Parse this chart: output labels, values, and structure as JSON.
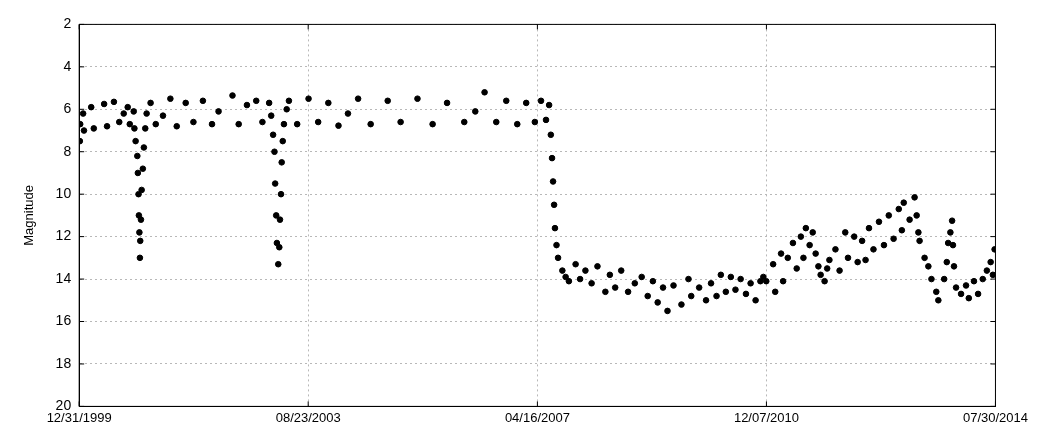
{
  "chart_data": {
    "type": "scatter",
    "ylabel": "Magnitude",
    "color": "#000000",
    "marker": "circle",
    "grid": true,
    "x": [
      "2000-01-04",
      "2000-01-06",
      "2000-01-23",
      "2000-01-28",
      "2000-03-10",
      "2000-03-25",
      "2000-05-24",
      "2000-06-10",
      "2000-07-20",
      "2000-08-20",
      "2000-09-15",
      "2000-10-08",
      "2000-10-20",
      "2000-11-12",
      "2000-11-16",
      "2000-11-23",
      "2000-12-03",
      "2000-12-06",
      "2000-12-10",
      "2000-12-12",
      "2000-12-15",
      "2000-12-18",
      "2000-12-20",
      "2000-12-24",
      "2000-12-28",
      "2001-01-04",
      "2001-01-10",
      "2001-01-18",
      "2001-01-26",
      "2001-02-18",
      "2001-03-20",
      "2001-05-01",
      "2001-06-13",
      "2001-07-20",
      "2001-09-10",
      "2001-10-25",
      "2001-12-19",
      "2002-02-10",
      "2002-03-20",
      "2002-06-09",
      "2002-07-15",
      "2002-09-01",
      "2002-10-25",
      "2002-11-30",
      "2003-01-08",
      "2003-01-20",
      "2003-01-31",
      "2003-02-08",
      "2003-02-12",
      "2003-02-18",
      "2003-02-22",
      "2003-03-02",
      "2003-03-08",
      "2003-03-12",
      "2003-03-18",
      "2003-03-22",
      "2003-03-28",
      "2003-04-04",
      "2003-04-20",
      "2003-05-03",
      "2003-06-20",
      "2003-08-25",
      "2003-10-20",
      "2003-12-18",
      "2004-02-15",
      "2004-04-10",
      "2004-06-08",
      "2004-08-20",
      "2004-11-27",
      "2005-02-10",
      "2005-05-19",
      "2005-08-15",
      "2005-11-07",
      "2006-02-15",
      "2006-04-20",
      "2006-06-13",
      "2006-08-20",
      "2006-10-17",
      "2006-12-20",
      "2007-02-10",
      "2007-04-01",
      "2007-05-07",
      "2007-06-05",
      "2007-06-23",
      "2007-07-03",
      "2007-07-10",
      "2007-07-16",
      "2007-07-22",
      "2007-07-27",
      "2007-08-05",
      "2007-08-14",
      "2007-09-08",
      "2007-09-27",
      "2007-10-16",
      "2007-11-24",
      "2007-12-20",
      "2008-01-20",
      "2008-02-25",
      "2008-03-30",
      "2008-05-15",
      "2008-06-10",
      "2008-07-11",
      "2008-08-15",
      "2008-09-24",
      "2008-11-02",
      "2008-12-12",
      "2009-01-16",
      "2009-02-15",
      "2009-03-15",
      "2009-04-15",
      "2009-05-11",
      "2009-06-15",
      "2009-07-31",
      "2009-09-10",
      "2009-09-26",
      "2009-11-11",
      "2009-12-21",
      "2010-01-19",
      "2010-02-20",
      "2010-03-17",
      "2010-04-15",
      "2010-05-14",
      "2010-06-10",
      "2010-07-10",
      "2010-08-10",
      "2010-09-06",
      "2010-10-05",
      "2010-11-02",
      "2010-11-19",
      "2010-12-06",
      "2011-01-15",
      "2011-01-27",
      "2011-03-02",
      "2011-03-14",
      "2011-04-10",
      "2011-05-10",
      "2011-06-01",
      "2011-06-25",
      "2011-07-10",
      "2011-07-24",
      "2011-08-15",
      "2011-09-02",
      "2011-09-19",
      "2011-10-05",
      "2011-10-18",
      "2011-11-10",
      "2011-11-25",
      "2011-12-08",
      "2012-01-12",
      "2012-02-05",
      "2012-03-09",
      "2012-03-25",
      "2012-04-30",
      "2012-05-20",
      "2012-06-15",
      "2012-07-05",
      "2012-07-25",
      "2012-08-20",
      "2012-09-21",
      "2012-10-20",
      "2012-11-17",
      "2012-12-15",
      "2013-01-14",
      "2013-02-01",
      "2013-02-12",
      "2013-03-18",
      "2013-04-16",
      "2013-04-28",
      "2013-05-08",
      "2013-05-15",
      "2013-06-13",
      "2013-07-05",
      "2013-07-23",
      "2013-08-20",
      "2013-09-01",
      "2013-10-05",
      "2013-10-20",
      "2013-10-28",
      "2013-11-10",
      "2013-11-20",
      "2013-11-25",
      "2013-12-01",
      "2013-12-13",
      "2014-01-11",
      "2014-02-09",
      "2014-02-25",
      "2014-03-27",
      "2014-04-20",
      "2014-05-17",
      "2014-06-10",
      "2014-07-02",
      "2014-07-15",
      "2014-07-25"
    ],
    "values": [
      7.5,
      6.7,
      6.2,
      7.0,
      5.9,
      6.9,
      5.75,
      6.8,
      5.65,
      6.6,
      6.2,
      5.9,
      6.7,
      6.1,
      6.9,
      7.5,
      8.2,
      9.0,
      10.0,
      11.0,
      11.8,
      13.0,
      12.2,
      11.2,
      9.8,
      8.8,
      7.8,
      6.9,
      6.2,
      5.7,
      6.7,
      6.3,
      5.5,
      6.8,
      5.7,
      6.6,
      5.6,
      6.7,
      6.1,
      5.35,
      6.7,
      5.8,
      5.6,
      6.6,
      5.7,
      6.3,
      7.2,
      8.0,
      9.5,
      11.0,
      12.3,
      13.3,
      12.5,
      11.2,
      10.0,
      8.5,
      7.5,
      6.7,
      6.0,
      5.6,
      6.7,
      5.5,
      6.6,
      5.7,
      6.77,
      6.2,
      5.5,
      6.7,
      5.6,
      6.6,
      5.5,
      6.7,
      5.7,
      6.6,
      6.1,
      5.2,
      6.6,
      5.6,
      6.7,
      5.7,
      6.6,
      5.6,
      6.5,
      5.8,
      7.2,
      8.3,
      9.4,
      10.5,
      11.6,
      12.4,
      13.0,
      13.6,
      13.9,
      14.1,
      13.3,
      14.0,
      13.6,
      14.2,
      13.4,
      14.6,
      13.8,
      14.4,
      13.6,
      14.6,
      14.2,
      13.9,
      14.8,
      14.1,
      15.1,
      14.4,
      15.5,
      14.3,
      15.2,
      14.0,
      14.8,
      14.4,
      15.0,
      14.2,
      14.8,
      13.8,
      14.6,
      13.9,
      14.5,
      14.0,
      14.7,
      14.2,
      15.0,
      14.1,
      13.9,
      14.1,
      13.3,
      14.6,
      12.8,
      14.1,
      13.0,
      12.3,
      13.5,
      12.0,
      13.0,
      11.6,
      12.4,
      11.8,
      12.8,
      13.4,
      13.8,
      14.1,
      13.5,
      13.1,
      12.6,
      13.6,
      11.8,
      13.0,
      12.0,
      13.2,
      12.2,
      13.1,
      11.6,
      12.6,
      11.3,
      12.4,
      11.0,
      12.1,
      10.7,
      11.7,
      10.4,
      11.2,
      10.15,
      11.0,
      11.8,
      12.2,
      13.0,
      13.4,
      14.0,
      14.6,
      15.0,
      14.0,
      13.2,
      12.3,
      11.8,
      11.25,
      12.4,
      13.4,
      14.4,
      14.7,
      14.3,
      14.9,
      14.1,
      14.7,
      14.0,
      13.6,
      13.2,
      13.8,
      12.6
    ],
    "xlim": [
      "1999-12-31",
      "2014-07-30"
    ],
    "xticks": [
      {
        "value": "1999-12-31",
        "label": "12/31/1999"
      },
      {
        "value": "2003-08-23",
        "label": "08/23/2003"
      },
      {
        "value": "2007-04-16",
        "label": "04/16/2007"
      },
      {
        "value": "2010-12-07",
        "label": "12/07/2010"
      },
      {
        "value": "2014-07-30",
        "label": "07/30/2014"
      }
    ],
    "ylim": [
      20,
      2
    ],
    "yticks": [
      2,
      4,
      6,
      8,
      10,
      12,
      14,
      16,
      18,
      20
    ]
  }
}
